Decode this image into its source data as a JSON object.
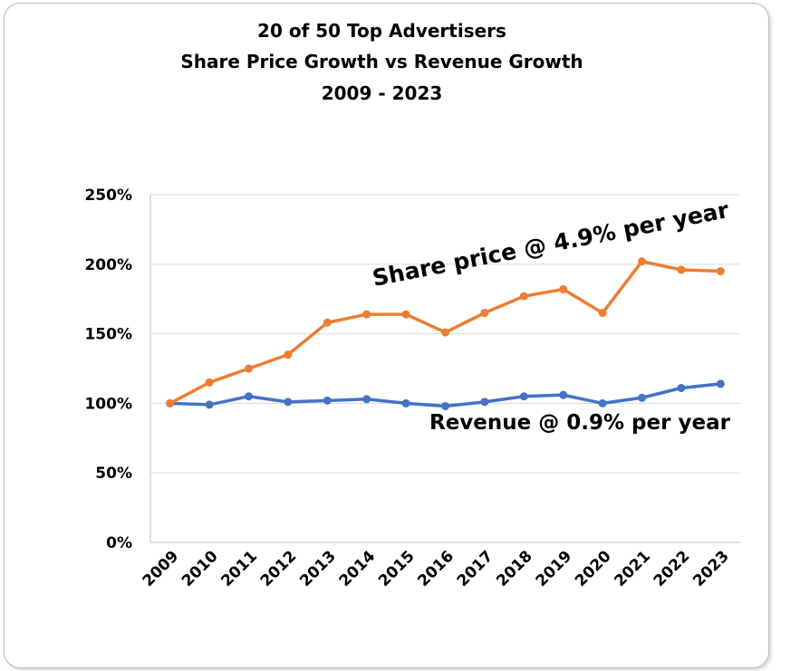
{
  "chart_data": {
    "type": "line",
    "title": [
      "20  of 50 Top Advertisers",
      "Share Price Growth vs Revenue Growth",
      "2009 - 2023"
    ],
    "xlabel": "",
    "ylabel": "",
    "categories": [
      "2009",
      "2010",
      "2011",
      "2012",
      "2013",
      "2014",
      "2015",
      "2016",
      "2017",
      "2018",
      "2019",
      "2020",
      "2021",
      "2022",
      "2023"
    ],
    "ylim": [
      0,
      250
    ],
    "yticks": [
      0,
      50,
      100,
      150,
      200,
      250
    ],
    "ytick_labels": [
      "0%",
      "50%",
      "100%",
      "150%",
      "200%",
      "250%"
    ],
    "grid": true,
    "series": [
      {
        "name": "Share price",
        "color": "#ED7D31",
        "values": [
          100,
          115,
          125,
          135,
          158,
          164,
          164,
          151,
          165,
          177,
          182,
          165,
          202,
          196,
          195
        ]
      },
      {
        "name": "Revenue",
        "color": "#4472C4",
        "values": [
          100,
          99,
          105,
          101,
          102,
          103,
          100,
          98,
          101,
          105,
          106,
          100,
          104,
          111,
          114
        ]
      }
    ],
    "annotations": [
      {
        "text": "Share price @ 4.9% per year",
        "series": "Share price"
      },
      {
        "text": "Revenue @  0.9% per year",
        "series": "Revenue"
      }
    ]
  }
}
